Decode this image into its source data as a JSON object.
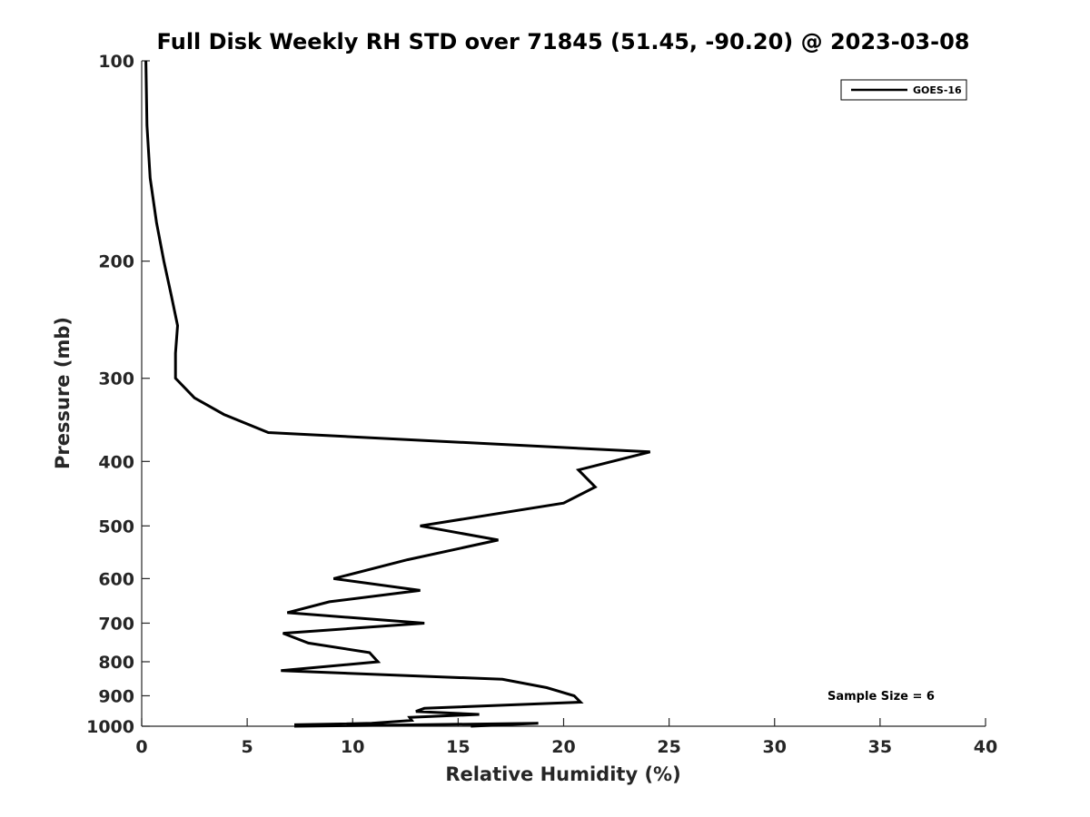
{
  "chart_data": {
    "type": "line",
    "title": "Full Disk Weekly RH STD over 71845 (51.45, -90.20) @ 2023-03-08",
    "xlabel": "Relative Humidity (%)",
    "ylabel": "Pressure (mb)",
    "xlim": [
      0,
      40
    ],
    "ylim": [
      1000,
      100
    ],
    "y_scale": "log",
    "x_ticks": [
      "0",
      "5",
      "10",
      "15",
      "20",
      "25",
      "30",
      "35",
      "40"
    ],
    "y_ticks": [
      "100",
      "200",
      "300",
      "400",
      "500",
      "600",
      "700",
      "800",
      "900",
      "1000"
    ],
    "grid": false,
    "legend_position": "top-right",
    "annotation": "Sample Size = 6",
    "series": [
      {
        "name": "GOES-16",
        "color": "#000000",
        "points": [
          [
            0.2,
            100
          ],
          [
            0.25,
            125
          ],
          [
            0.4,
            150
          ],
          [
            0.7,
            175
          ],
          [
            1.05,
            200
          ],
          [
            1.4,
            225
          ],
          [
            1.7,
            250
          ],
          [
            1.6,
            275
          ],
          [
            1.6,
            300
          ],
          [
            2.5,
            321
          ],
          [
            3.9,
            340
          ],
          [
            6.0,
            362
          ],
          [
            24.1,
            387
          ],
          [
            20.7,
            412
          ],
          [
            21.5,
            437
          ],
          [
            20.0,
            462
          ],
          [
            13.2,
            500
          ],
          [
            16.9,
            525
          ],
          [
            12.6,
            562
          ],
          [
            9.1,
            600
          ],
          [
            13.2,
            625
          ],
          [
            8.9,
            650
          ],
          [
            6.9,
            675
          ],
          [
            13.4,
            700
          ],
          [
            6.7,
            725
          ],
          [
            7.9,
            750
          ],
          [
            10.8,
            775
          ],
          [
            11.2,
            800
          ],
          [
            6.6,
            825
          ],
          [
            17.1,
            850
          ],
          [
            19.2,
            875
          ],
          [
            20.5,
            900
          ],
          [
            20.8,
            920
          ],
          [
            13.4,
            940
          ],
          [
            13.0,
            950
          ],
          [
            16.0,
            960
          ],
          [
            12.7,
            970
          ],
          [
            12.8,
            980
          ],
          [
            10.9,
            990
          ],
          [
            7.3,
            995
          ],
          [
            7.3,
            1000
          ],
          [
            18.8,
            990
          ],
          [
            15.6,
            1000
          ]
        ]
      }
    ]
  }
}
